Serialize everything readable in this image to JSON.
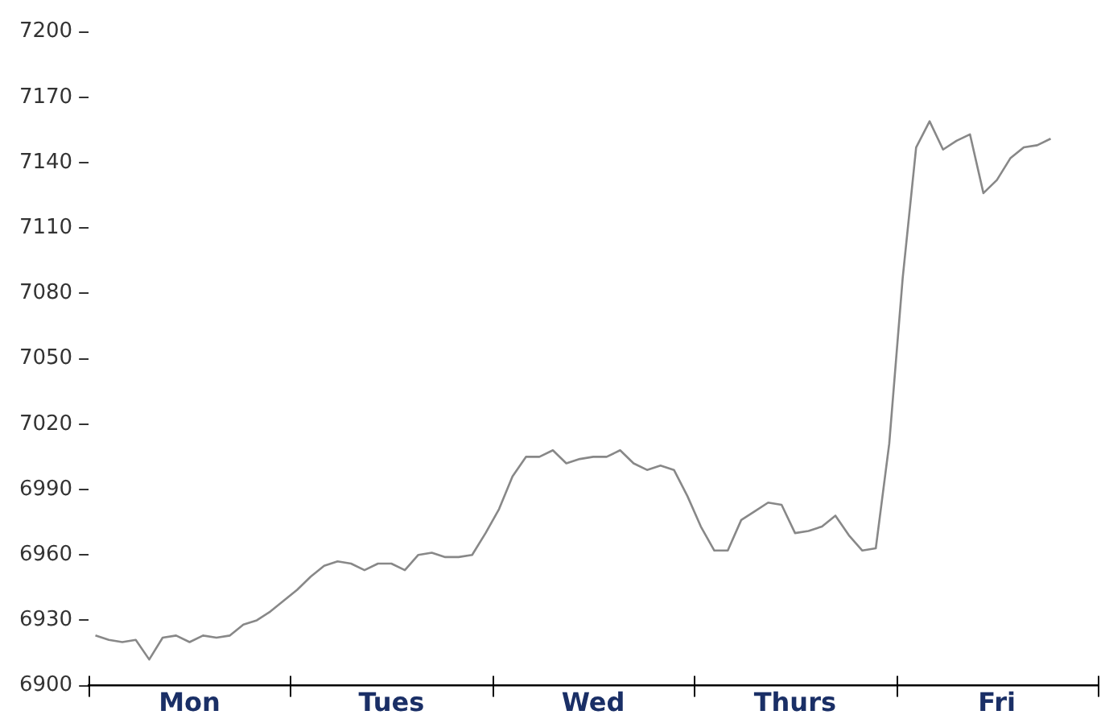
{
  "chart_data": {
    "type": "line",
    "categories": [
      null,
      null,
      null,
      null,
      null,
      null,
      null,
      "Mon",
      null,
      null,
      null,
      null,
      null,
      null,
      null,
      null,
      null,
      null,
      null,
      null,
      null,
      null,
      "Tues",
      null,
      null,
      null,
      null,
      null,
      null,
      null,
      null,
      null,
      null,
      null,
      null,
      null,
      null,
      "Wed",
      null,
      null,
      null,
      null,
      null,
      null,
      null,
      null,
      null,
      null,
      null,
      null,
      null,
      null,
      "Thurs",
      null,
      null,
      null,
      null,
      null,
      null,
      null,
      null,
      null,
      null,
      null,
      null,
      null,
      null,
      "Fri",
      null,
      null,
      null,
      null,
      null,
      null,
      null
    ],
    "series": [
      {
        "color": "#888888",
        "values": [
          6923,
          6921,
          6920,
          6921,
          6912,
          6922,
          6923,
          6920,
          6923,
          6922,
          6923,
          6928,
          6930,
          6934,
          6939,
          6944,
          6950,
          6955,
          6957,
          6956,
          6953,
          6956,
          6956,
          6953,
          6960,
          6961,
          6959,
          6959,
          6960,
          6970,
          6981,
          6996,
          7005,
          7005,
          7008,
          7002,
          7004,
          7005,
          7005,
          7008,
          7002,
          6999,
          7001,
          6999,
          6987,
          6973,
          6962,
          6962,
          6976,
          6980,
          6984,
          6983,
          6970,
          6971,
          6973,
          6978,
          6969,
          6962,
          6963,
          7011,
          7087,
          7147,
          7159,
          7146,
          7150,
          7153,
          7126,
          7132,
          7142,
          7147,
          7148,
          7151,
          null,
          null,
          null
        ]
      }
    ],
    "ylim": [
      6900,
      7200
    ],
    "yticks": [
      6900,
      6930,
      6960,
      6990,
      7020,
      7050,
      7080,
      7110,
      7140,
      7170,
      7200
    ],
    "grid": false,
    "legend": false,
    "marker": "none",
    "line_style": "solid"
  }
}
